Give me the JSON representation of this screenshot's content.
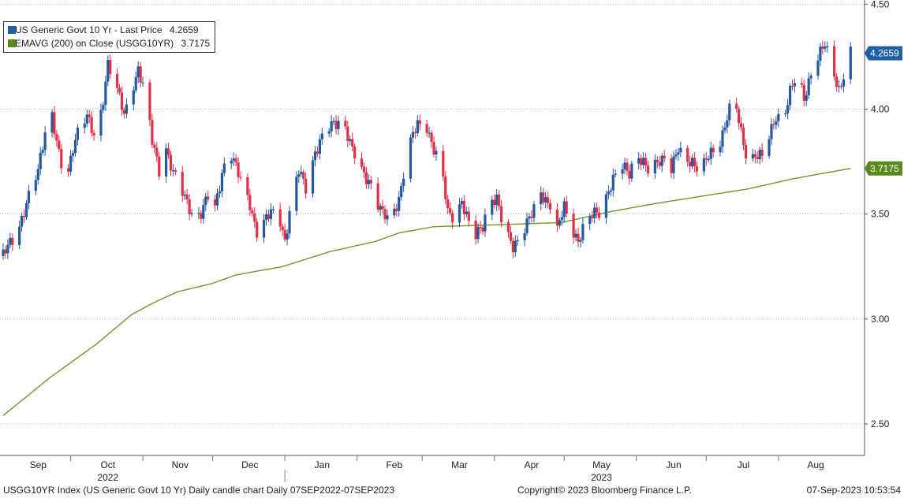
{
  "chart_data": {
    "type": "candlestick",
    "ylim": [
      2.35,
      4.52
    ],
    "y_ticks": [
      2.5,
      3.0,
      3.5,
      4.0,
      4.5
    ],
    "y_tick_labels": [
      "2.50",
      "3.00",
      "3.50",
      "4.00",
      "4.50"
    ],
    "grid": "horizontal dotted",
    "legend_position": "top-left",
    "legend": [
      {
        "label": "US Generic Govt 10 Yr - Last Price",
        "value": "4.2659",
        "color": "#1f5fa6"
      },
      {
        "label": "EMAVG (200)  on Close (USGG10YR)",
        "value": "3.7175",
        "color": "#5a8a1e"
      }
    ],
    "last_price_tag": {
      "label": "4.2659",
      "value": 4.2659,
      "color": "#1f5fa6"
    },
    "ema_tag": {
      "label": "3.7175",
      "value": 3.7175,
      "color": "#5a8a1e"
    },
    "month_labels": [
      "Sep",
      "Oct",
      "Nov",
      "Dec",
      "Jan",
      "Feb",
      "Mar",
      "Apr",
      "May",
      "Jun",
      "Jul",
      "Aug"
    ],
    "month_label_days": [
      15,
      45,
      76,
      106,
      137,
      168,
      196,
      227,
      257,
      288,
      318,
      349
    ],
    "month_boundary_days": [
      29,
      60,
      90,
      121,
      152,
      180,
      211,
      241,
      272,
      302,
      333
    ],
    "year_labels": [
      {
        "label": "2022",
        "day": 45
      },
      {
        "label": "2023",
        "day": 257
      }
    ],
    "year_boundary_day": 121,
    "x_range_days": [
      0,
      370
    ],
    "last_day": 364,
    "series": [
      {
        "name": "US Generic Govt 10 Yr - Last Price",
        "close_anchors": [
          [
            0,
            3.3
          ],
          [
            6,
            3.42
          ],
          [
            10,
            3.55
          ],
          [
            15,
            3.7
          ],
          [
            18,
            3.9
          ],
          [
            21,
            3.98
          ],
          [
            24,
            3.78
          ],
          [
            27,
            3.62
          ],
          [
            30,
            3.82
          ],
          [
            33,
            3.95
          ],
          [
            36,
            3.97
          ],
          [
            40,
            3.82
          ],
          [
            43,
            4.05
          ],
          [
            45,
            4.23
          ],
          [
            48,
            4.14
          ],
          [
            52,
            3.96
          ],
          [
            55,
            4.08
          ],
          [
            58,
            4.2
          ],
          [
            61,
            4.08
          ],
          [
            64,
            3.84
          ],
          [
            67,
            3.71
          ],
          [
            70,
            3.82
          ],
          [
            73,
            3.7
          ],
          [
            76,
            3.62
          ],
          [
            79,
            3.55
          ],
          [
            82,
            3.49
          ],
          [
            85,
            3.51
          ],
          [
            88,
            3.58
          ],
          [
            91,
            3.52
          ],
          [
            94,
            3.7
          ],
          [
            97,
            3.82
          ],
          [
            100,
            3.72
          ],
          [
            103,
            3.62
          ],
          [
            106,
            3.55
          ],
          [
            109,
            3.42
          ],
          [
            112,
            3.46
          ],
          [
            115,
            3.5
          ],
          [
            118,
            3.52
          ],
          [
            121,
            3.38
          ],
          [
            124,
            3.56
          ],
          [
            127,
            3.7
          ],
          [
            130,
            3.63
          ],
          [
            134,
            3.8
          ],
          [
            138,
            3.88
          ],
          [
            142,
            3.93
          ],
          [
            146,
            3.96
          ],
          [
            150,
            3.8
          ],
          [
            154,
            3.7
          ],
          [
            158,
            3.65
          ],
          [
            162,
            3.52
          ],
          [
            166,
            3.45
          ],
          [
            170,
            3.58
          ],
          [
            174,
            3.82
          ],
          [
            178,
            3.92
          ],
          [
            182,
            3.92
          ],
          [
            186,
            3.78
          ],
          [
            188,
            3.74
          ],
          [
            191,
            3.5
          ],
          [
            194,
            3.49
          ],
          [
            197,
            3.57
          ],
          [
            200,
            3.45
          ],
          [
            203,
            3.39
          ],
          [
            206,
            3.45
          ],
          [
            209,
            3.58
          ],
          [
            212,
            3.57
          ],
          [
            215,
            3.42
          ],
          [
            219,
            3.35
          ],
          [
            223,
            3.42
          ],
          [
            227,
            3.49
          ],
          [
            231,
            3.6
          ],
          [
            235,
            3.55
          ],
          [
            238,
            3.42
          ],
          [
            241,
            3.53
          ],
          [
            244,
            3.44
          ],
          [
            247,
            3.38
          ],
          [
            250,
            3.45
          ],
          [
            254,
            3.5
          ],
          [
            257,
            3.52
          ],
          [
            260,
            3.62
          ],
          [
            263,
            3.68
          ],
          [
            266,
            3.72
          ],
          [
            269,
            3.7
          ],
          [
            272,
            3.8
          ],
          [
            275,
            3.74
          ],
          [
            278,
            3.68
          ],
          [
            281,
            3.75
          ],
          [
            284,
            3.78
          ],
          [
            287,
            3.72
          ],
          [
            290,
            3.8
          ],
          [
            293,
            3.75
          ],
          [
            296,
            3.76
          ],
          [
            299,
            3.71
          ],
          [
            302,
            3.75
          ],
          [
            305,
            3.8
          ],
          [
            308,
            3.85
          ],
          [
            311,
            3.97
          ],
          [
            314,
            4.05
          ],
          [
            317,
            3.88
          ],
          [
            320,
            3.75
          ],
          [
            323,
            3.79
          ],
          [
            326,
            3.77
          ],
          [
            329,
            3.86
          ],
          [
            332,
            3.97
          ],
          [
            335,
            3.96
          ],
          [
            338,
            4.08
          ],
          [
            341,
            4.15
          ],
          [
            344,
            4.05
          ],
          [
            347,
            4.18
          ],
          [
            350,
            4.25
          ],
          [
            353,
            4.3
          ],
          [
            356,
            4.2
          ],
          [
            359,
            4.1
          ],
          [
            361,
            4.16
          ],
          [
            364,
            4.2659
          ]
        ]
      },
      {
        "name": "EMAVG (200)  on Close (USGG10YR)",
        "anchors": [
          [
            0,
            2.54
          ],
          [
            20,
            2.72
          ],
          [
            40,
            2.88
          ],
          [
            55,
            3.02
          ],
          [
            65,
            3.08
          ],
          [
            75,
            3.13
          ],
          [
            90,
            3.17
          ],
          [
            100,
            3.21
          ],
          [
            120,
            3.25
          ],
          [
            140,
            3.32
          ],
          [
            160,
            3.37
          ],
          [
            170,
            3.41
          ],
          [
            185,
            3.44
          ],
          [
            200,
            3.445
          ],
          [
            215,
            3.45
          ],
          [
            240,
            3.46
          ],
          [
            260,
            3.51
          ],
          [
            280,
            3.55
          ],
          [
            300,
            3.585
          ],
          [
            320,
            3.62
          ],
          [
            340,
            3.67
          ],
          [
            364,
            3.7175
          ]
        ]
      }
    ]
  },
  "footer": {
    "left": "USGG10YR Index (US Generic Govt 10 Yr) Daily candle chart  Daily 07SEP2022-07SEP2023",
    "center": "Copyright© 2023 Bloomberg Finance L.P.",
    "right": "07-Sep-2023 10:53:54"
  }
}
